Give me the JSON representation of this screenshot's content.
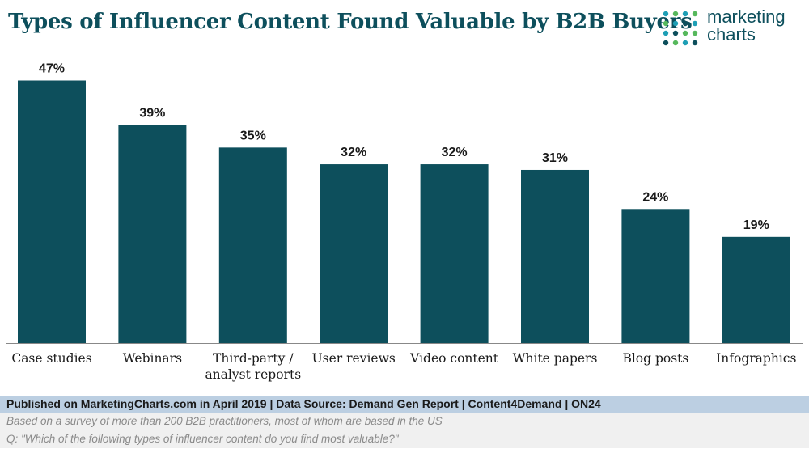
{
  "header": {
    "title": "Types of Influencer Content Found Valuable by B2B Buyers"
  },
  "logo": {
    "line1": "marketing",
    "line2": "charts",
    "dot_colors": [
      "#1e9fb5",
      "#56b85c",
      "#0d4f5c"
    ]
  },
  "chart_data": {
    "type": "bar",
    "categories": [
      [
        "Case studies"
      ],
      [
        "Webinars"
      ],
      [
        "Third-party /",
        "analyst reports"
      ],
      [
        "User reviews"
      ],
      [
        "Video content"
      ],
      [
        "White papers"
      ],
      [
        "Blog posts"
      ],
      [
        "Infographics"
      ]
    ],
    "values": [
      47,
      39,
      35,
      32,
      32,
      31,
      24,
      19
    ],
    "value_labels": [
      "47%",
      "39%",
      "35%",
      "32%",
      "32%",
      "31%",
      "24%",
      "19%"
    ],
    "ylim": [
      0,
      50
    ],
    "grid": false,
    "bar_color": "#0d4f5c"
  },
  "footer": {
    "published": "Published on MarketingCharts.com in April 2019 | Data Source: Demand Gen Report | Content4Demand | ON24",
    "note1": "Based on a survey of more than 200 B2B practitioners, most of whom are based in the US",
    "note2": "Q: \"Which of the following types of influencer content do you find most valuable?\""
  }
}
